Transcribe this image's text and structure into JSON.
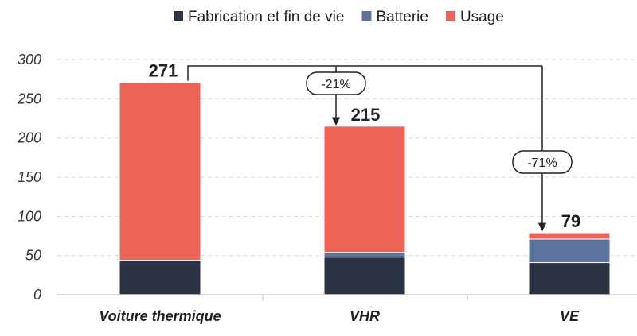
{
  "chart_data": {
    "type": "bar",
    "stacked": true,
    "categories": [
      "Voiture thermique",
      "VHR",
      "VE"
    ],
    "series": [
      {
        "name": "Fabrication et fin de vie",
        "color": "#2b3244",
        "values": [
          44,
          48,
          41
        ]
      },
      {
        "name": "Batterie",
        "color": "#5b739e",
        "values": [
          0,
          6,
          30
        ]
      },
      {
        "name": "Usage",
        "color": "#ec6357",
        "values": [
          227,
          161,
          8
        ]
      }
    ],
    "totals": [
      "271",
      "215",
      "79"
    ],
    "annotations": [
      {
        "label": "-21%",
        "from": "Voiture thermique",
        "to": "VHR"
      },
      {
        "label": "-71%",
        "from": "Voiture thermique",
        "to": "VE"
      }
    ],
    "y_ticks": [
      "0",
      "50",
      "100",
      "150",
      "200",
      "250",
      "300"
    ],
    "ylim": [
      0,
      300
    ],
    "grid": true,
    "legend_position": "top",
    "title": "",
    "xlabel": "",
    "ylabel": ""
  }
}
